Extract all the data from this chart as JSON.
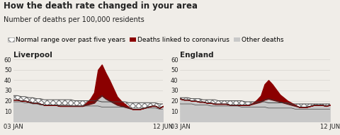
{
  "title": "How the death rate changed in your area",
  "subtitle": "Number of deaths per 100,000 residents",
  "legend_items": [
    "Normal range over past five years",
    "Deaths linked to coronavirus",
    "Other deaths"
  ],
  "background_color": "#f0ede8",
  "charts": [
    {
      "label": "Liverpool",
      "x_ticks": [
        "03 JAN",
        "12 JUN"
      ],
      "ylim": [
        0,
        60
      ],
      "yticks": [
        0,
        10,
        20,
        30,
        40,
        50,
        60
      ],
      "normal_range_upper": [
        25,
        25,
        24,
        24,
        23,
        23,
        22,
        22,
        21,
        21,
        21,
        21,
        21,
        21,
        21,
        21,
        20,
        20,
        20,
        20,
        20,
        20,
        20,
        19,
        19,
        19,
        19,
        19,
        19,
        19,
        18,
        18,
        18,
        18,
        18,
        18,
        18,
        18,
        17,
        17
      ],
      "normal_range_lower": [
        19,
        19,
        19,
        18,
        18,
        17,
        17,
        16,
        16,
        16,
        16,
        16,
        16,
        16,
        16,
        15,
        15,
        15,
        15,
        15,
        15,
        15,
        15,
        14,
        14,
        14,
        14,
        14,
        14,
        14,
        13,
        13,
        13,
        13,
        13,
        13,
        13,
        13,
        12,
        12
      ],
      "other_deaths": [
        21,
        21,
        20,
        20,
        19,
        18,
        18,
        17,
        16,
        16,
        16,
        16,
        15,
        15,
        15,
        15,
        15,
        15,
        15,
        16,
        17,
        18,
        22,
        25,
        22,
        20,
        18,
        16,
        15,
        14,
        13,
        12,
        12,
        12,
        13,
        14,
        15,
        15,
        13,
        15
      ],
      "covid_deaths": [
        0,
        0,
        0,
        0,
        0,
        0,
        0,
        0,
        0,
        0,
        0,
        0,
        0,
        0,
        0,
        0,
        0,
        0,
        0,
        2,
        5,
        10,
        28,
        30,
        25,
        20,
        14,
        8,
        5,
        3,
        1,
        0,
        0,
        0,
        0,
        0,
        0,
        0,
        0,
        0
      ]
    },
    {
      "label": "England",
      "x_ticks": [
        "03 JAN",
        "12 JUN"
      ],
      "ylim": [
        0,
        60
      ],
      "yticks": [
        0,
        10,
        20,
        30,
        40,
        50,
        60
      ],
      "normal_range_upper": [
        23,
        23,
        23,
        22,
        22,
        22,
        21,
        21,
        21,
        21,
        20,
        20,
        20,
        20,
        20,
        20,
        20,
        19,
        19,
        19,
        19,
        19,
        19,
        18,
        18,
        18,
        18,
        18,
        18,
        17,
        17,
        17,
        17,
        17,
        17,
        17,
        17,
        17,
        17,
        17
      ],
      "normal_range_lower": [
        17,
        17,
        17,
        17,
        16,
        16,
        16,
        16,
        15,
        15,
        15,
        15,
        15,
        15,
        15,
        15,
        14,
        14,
        14,
        14,
        14,
        14,
        14,
        13,
        13,
        13,
        13,
        13,
        13,
        13,
        12,
        12,
        12,
        12,
        12,
        12,
        12,
        12,
        12,
        12
      ],
      "other_deaths": [
        22,
        21,
        21,
        20,
        20,
        19,
        19,
        18,
        18,
        17,
        17,
        17,
        17,
        16,
        16,
        16,
        16,
        16,
        16,
        17,
        18,
        19,
        21,
        22,
        21,
        20,
        19,
        18,
        17,
        16,
        15,
        14,
        14,
        14,
        15,
        16,
        16,
        16,
        15,
        16
      ],
      "covid_deaths": [
        0,
        0,
        0,
        0,
        0,
        0,
        0,
        0,
        0,
        0,
        0,
        0,
        0,
        0,
        0,
        0,
        0,
        0,
        0,
        1,
        3,
        6,
        15,
        18,
        15,
        11,
        7,
        5,
        3,
        2,
        1,
        0,
        0,
        0,
        0,
        0,
        0,
        0,
        0,
        0
      ]
    }
  ],
  "colors": {
    "other_deaths_fill": "#c8c8c8",
    "covid_fill": "#8b0000",
    "grid_line": "#d0cdc8",
    "text_color": "#222222",
    "normal_hatch_color": "#888888",
    "normal_line_color": "#444444"
  },
  "title_fontsize": 8.5,
  "subtitle_fontsize": 7,
  "label_fontsize": 7.5,
  "tick_fontsize": 6,
  "legend_fontsize": 6.5
}
